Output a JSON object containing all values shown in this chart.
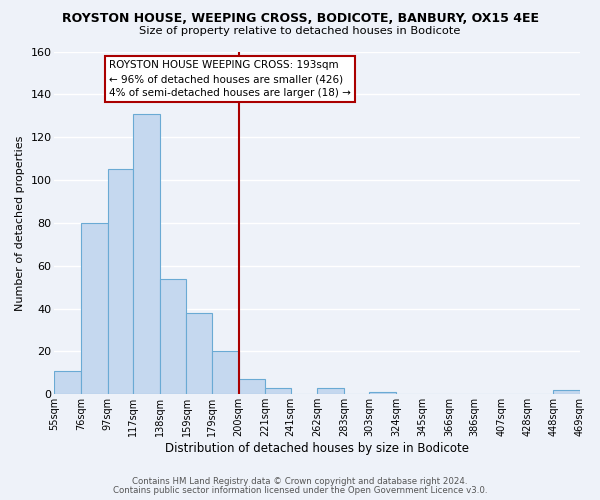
{
  "title": "ROYSTON HOUSE, WEEPING CROSS, BODICOTE, BANBURY, OX15 4EE",
  "subtitle": "Size of property relative to detached houses in Bodicote",
  "xlabel": "Distribution of detached houses by size in Bodicote",
  "ylabel": "Number of detached properties",
  "bin_labels": [
    "55sqm",
    "76sqm",
    "97sqm",
    "117sqm",
    "138sqm",
    "159sqm",
    "179sqm",
    "200sqm",
    "221sqm",
    "241sqm",
    "262sqm",
    "283sqm",
    "303sqm",
    "324sqm",
    "345sqm",
    "366sqm",
    "386sqm",
    "407sqm",
    "428sqm",
    "448sqm",
    "469sqm"
  ],
  "bar_heights": [
    11,
    80,
    105,
    131,
    54,
    38,
    20,
    7,
    3,
    0,
    3,
    0,
    1,
    0,
    0,
    0,
    0,
    0,
    0,
    2
  ],
  "bar_color": "#c5d8ef",
  "bar_edge_color": "#6aaad4",
  "background_color": "#eef2f9",
  "grid_color": "#ffffff",
  "vline_x_idx": 7,
  "vline_color": "#aa0000",
  "ylim": [
    0,
    160
  ],
  "yticks": [
    0,
    20,
    40,
    60,
    80,
    100,
    120,
    140,
    160
  ],
  "annotation_title": "ROYSTON HOUSE WEEPING CROSS: 193sqm",
  "annotation_line1": "← 96% of detached houses are smaller (426)",
  "annotation_line2": "4% of semi-detached houses are larger (18) →",
  "footer1": "Contains HM Land Registry data © Crown copyright and database right 2024.",
  "footer2": "Contains public sector information licensed under the Open Government Licence v3.0.",
  "bin_edges": [
    55,
    76,
    97,
    117,
    138,
    159,
    179,
    200,
    221,
    241,
    262,
    283,
    303,
    324,
    345,
    366,
    386,
    407,
    428,
    448,
    469
  ]
}
